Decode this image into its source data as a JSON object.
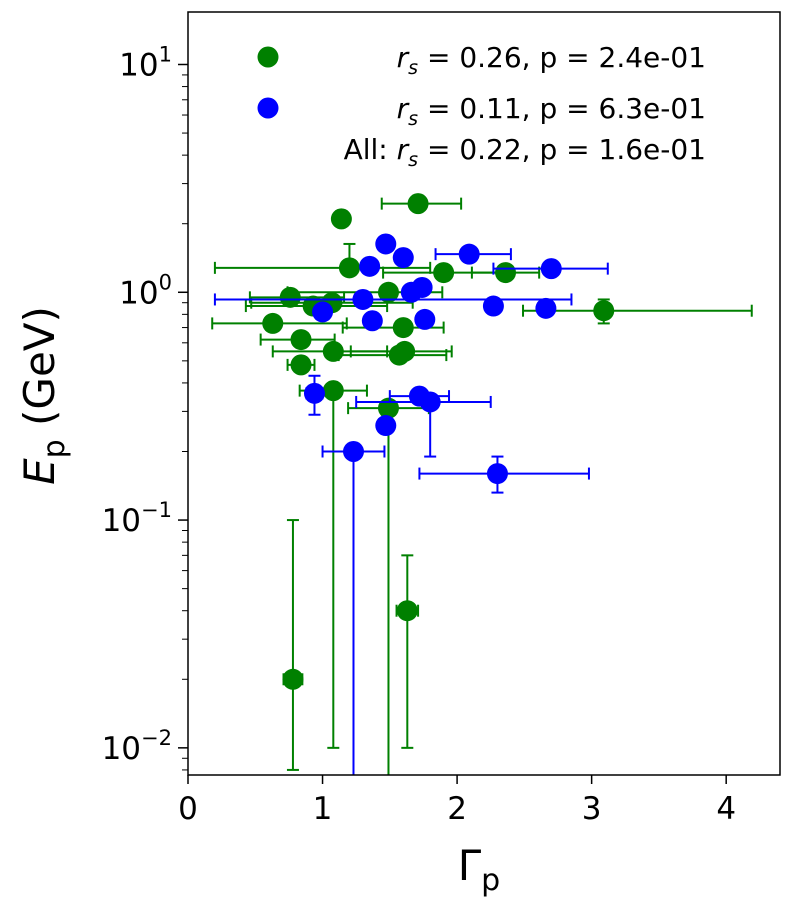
{
  "chart_data": {
    "type": "scatter",
    "title": "",
    "xlabel": {
      "base": "Γ",
      "sub": "p"
    },
    "ylabel": {
      "base": "E",
      "sub": "p",
      "unit": "(GeV)"
    },
    "x_scale": "linear",
    "y_scale": "log",
    "xlim": [
      0,
      4.4
    ],
    "ylim": [
      0.0076,
      17
    ],
    "x_ticks": [
      0,
      1,
      2,
      3,
      4
    ],
    "x_tick_labels": [
      "0",
      "1",
      "2",
      "3",
      "4"
    ],
    "y_ticks": [
      {
        "value": 0.01,
        "base": "10",
        "exp": "−2"
      },
      {
        "value": 0.1,
        "base": "10",
        "exp": "−1"
      },
      {
        "value": 1,
        "base": "10",
        "exp": "0"
      },
      {
        "value": 10,
        "base": "10",
        "exp": "1"
      }
    ],
    "legend_position": "top",
    "legend_summary": {
      "prefix": "All: ",
      "rs_symbol": "r",
      "rs_sub": "s",
      "text": " = 0.22, p = 1.6e-01"
    },
    "series": [
      {
        "name": "green",
        "color": "#008000",
        "legend": {
          "rs_symbol": "r",
          "rs_sub": "s",
          "text": " = 0.26, p = 2.4e-01"
        },
        "points": [
          {
            "x": 0.78,
            "y": 0.02,
            "xerr": [
              0.07,
              0.07
            ],
            "yerr": [
              0.012,
              0.08
            ]
          },
          {
            "x": 1.63,
            "y": 0.04,
            "xerr": [
              0.08,
              0.08
            ],
            "yerr": [
              0.03,
              0.03
            ]
          },
          {
            "x": 1.49,
            "y": 0.31,
            "xerr": [
              0.3,
              0.3
            ],
            "yerr": [
              0.305,
              0.0
            ]
          },
          {
            "x": 1.08,
            "y": 0.37,
            "xerr": [
              0.25,
              0.25
            ],
            "yerr": [
              0.36,
              0.0
            ]
          },
          {
            "x": 0.84,
            "y": 0.48,
            "xerr": [
              0.1,
              0.1
            ],
            "yerr": [
              0.0,
              0.0
            ]
          },
          {
            "x": 1.57,
            "y": 0.53,
            "xerr": [
              0.45,
              0.35
            ],
            "yerr": [
              0.0,
              0.0
            ]
          },
          {
            "x": 1.61,
            "y": 0.55,
            "xerr": [
              0.4,
              0.35
            ],
            "yerr": [
              0.0,
              0.0
            ]
          },
          {
            "x": 1.08,
            "y": 0.55,
            "xerr": [
              0.45,
              0.4
            ],
            "yerr": [
              0.0,
              0.0
            ]
          },
          {
            "x": 0.84,
            "y": 0.62,
            "xerr": [
              0.3,
              0.25
            ],
            "yerr": [
              0.0,
              0.0
            ]
          },
          {
            "x": 0.63,
            "y": 0.73,
            "xerr": [
              0.45,
              0.55
            ],
            "yerr": [
              0.0,
              0.0
            ]
          },
          {
            "x": 1.6,
            "y": 0.7,
            "xerr": [
              0.45,
              0.3
            ],
            "yerr": [
              0.0,
              0.0
            ]
          },
          {
            "x": 0.93,
            "y": 0.87,
            "xerr": [
              0.5,
              0.55
            ],
            "yerr": [
              0.0,
              0.0
            ]
          },
          {
            "x": 1.07,
            "y": 0.9,
            "xerr": [
              0.6,
              0.6
            ],
            "yerr": [
              0.0,
              0.0
            ]
          },
          {
            "x": 1.49,
            "y": 1.0,
            "xerr": [
              0.75,
              0.4
            ],
            "yerr": [
              0.0,
              0.0
            ]
          },
          {
            "x": 0.76,
            "y": 0.95,
            "xerr": [
              0.3,
              0.4
            ],
            "yerr": [
              0.0,
              0.0
            ]
          },
          {
            "x": 1.2,
            "y": 1.28,
            "xerr": [
              1.0,
              0.6
            ],
            "yerr": [
              0.0,
              0.35
            ]
          },
          {
            "x": 1.9,
            "y": 1.22,
            "xerr": [
              0.45,
              0.45
            ],
            "yerr": [
              0.0,
              0.0
            ]
          },
          {
            "x": 2.36,
            "y": 1.22,
            "xerr": [
              0.25,
              0.25
            ],
            "yerr": [
              0.0,
              0.0
            ]
          },
          {
            "x": 1.14,
            "y": 2.1,
            "xerr": [
              0.0,
              0.0
            ],
            "yerr": [
              0.0,
              0.0
            ]
          },
          {
            "x": 1.71,
            "y": 2.45,
            "xerr": [
              0.27,
              0.32
            ],
            "yerr": [
              0.0,
              0.2
            ]
          },
          {
            "x": 3.09,
            "y": 0.83,
            "xerr": [
              0.6,
              1.1
            ],
            "yerr": [
              0.1,
              0.1
            ]
          }
        ]
      },
      {
        "name": "blue",
        "color": "#0000ff",
        "legend": {
          "rs_symbol": "r",
          "rs_sub": "s",
          "text": " = 0.11, p = 6.3e-01"
        },
        "points": [
          {
            "x": 1.23,
            "y": 0.2,
            "xerr": [
              0.23,
              0.23
            ],
            "yerr": [
              0.195,
              0.0
            ]
          },
          {
            "x": 1.47,
            "y": 0.26,
            "xerr": [
              0.0,
              0.0
            ],
            "yerr": [
              0.0,
              0.0
            ]
          },
          {
            "x": 2.3,
            "y": 0.16,
            "xerr": [
              0.58,
              0.68
            ],
            "yerr": [
              0.028,
              0.03
            ]
          },
          {
            "x": 0.94,
            "y": 0.36,
            "xerr": [
              0.06,
              0.06
            ],
            "yerr": [
              0.07,
              0.07
            ]
          },
          {
            "x": 1.72,
            "y": 0.35,
            "xerr": [
              0.22,
              0.22
            ],
            "yerr": [
              0.0,
              0.0
            ]
          },
          {
            "x": 1.8,
            "y": 0.33,
            "xerr": [
              0.55,
              0.45
            ],
            "yerr": [
              0.14,
              0.0
            ]
          },
          {
            "x": 1.0,
            "y": 0.82,
            "xerr": [
              0.0,
              0.0
            ],
            "yerr": [
              0.0,
              0.0
            ]
          },
          {
            "x": 1.37,
            "y": 0.75,
            "xerr": [
              0.0,
              0.0
            ],
            "yerr": [
              0.0,
              0.0
            ]
          },
          {
            "x": 1.3,
            "y": 0.93,
            "xerr": [
              1.1,
              1.55
            ],
            "yerr": [
              0.0,
              0.0
            ]
          },
          {
            "x": 1.76,
            "y": 0.76,
            "xerr": [
              0.0,
              0.0
            ],
            "yerr": [
              0.0,
              0.0
            ]
          },
          {
            "x": 1.35,
            "y": 1.3,
            "xerr": [
              0.0,
              0.0
            ],
            "yerr": [
              0.0,
              0.0
            ]
          },
          {
            "x": 1.47,
            "y": 1.63,
            "xerr": [
              0.0,
              0.0
            ],
            "yerr": [
              0.0,
              0.0
            ]
          },
          {
            "x": 1.6,
            "y": 1.42,
            "xerr": [
              0.0,
              0.0
            ],
            "yerr": [
              0.0,
              0.0
            ]
          },
          {
            "x": 1.74,
            "y": 1.05,
            "xerr": [
              0.0,
              0.0
            ],
            "yerr": [
              0.0,
              0.0
            ]
          },
          {
            "x": 1.66,
            "y": 1.0,
            "xerr": [
              0.0,
              0.0
            ],
            "yerr": [
              0.0,
              0.0
            ]
          },
          {
            "x": 2.09,
            "y": 1.47,
            "xerr": [
              0.25,
              0.31
            ],
            "yerr": [
              0.0,
              0.0
            ]
          },
          {
            "x": 2.27,
            "y": 0.87,
            "xerr": [
              0.0,
              0.0
            ],
            "yerr": [
              0.0,
              0.0
            ]
          },
          {
            "x": 2.66,
            "y": 0.85,
            "xerr": [
              0.0,
              0.0
            ],
            "yerr": [
              0.0,
              0.0
            ]
          },
          {
            "x": 2.7,
            "y": 1.27,
            "xerr": [
              0.43,
              0.42
            ],
            "yerr": [
              0.0,
              0.0
            ]
          }
        ]
      }
    ]
  }
}
